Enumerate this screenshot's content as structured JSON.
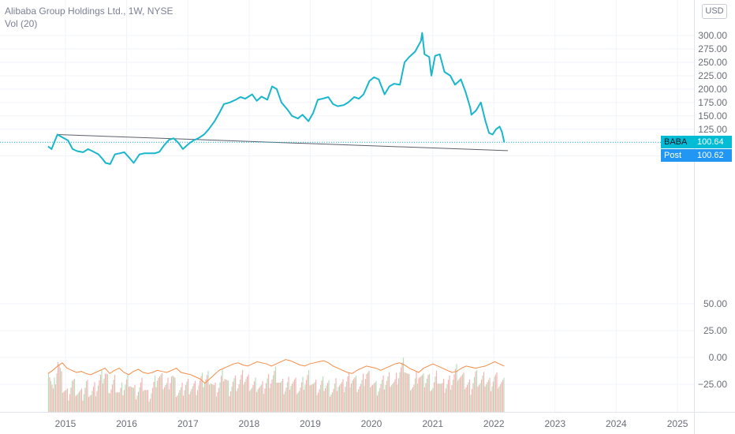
{
  "legend": {
    "title": "Alibaba Group Holdings Ltd., 1W, NYSE",
    "volume": "Vol (20)"
  },
  "currency_button": "USD",
  "price_tags": [
    {
      "label": "BABA",
      "value": "100.64",
      "color": "#00bcd4",
      "label_bg": "#00bcd4",
      "label_fg": "#131722"
    },
    {
      "label": "Post",
      "value": "100.62",
      "color": "#2196f3",
      "label_bg": "#2196f3",
      "label_fg": "#ffffff"
    }
  ],
  "colors": {
    "price_line": "#19b6cc",
    "trendline": "#5d606b",
    "volume_up": "#b7dfb9",
    "volume_down": "#f7b4b4",
    "volume_ma": "#f48c45",
    "grid": "#f0f3fa",
    "axis_text": "#6a6d78"
  },
  "chart_data": {
    "type": "line",
    "title": "Alibaba Group Holdings Ltd., 1W, NYSE",
    "x_ticks": [
      "2015",
      "2016",
      "2017",
      "2018",
      "2019",
      "2020",
      "2021",
      "2022",
      "2023",
      "2024",
      "2025"
    ],
    "price_ticks": [
      "300.00",
      "275.00",
      "250.00",
      "225.00",
      "200.00",
      "175.00",
      "150.00",
      "125.00",
      "75.00"
    ],
    "price_range": [
      0,
      320
    ],
    "series": [
      {
        "values_description_free": true,
        "x": [
          "2014-09-19",
          "2014-10-10",
          "2014-11-14",
          "2014-12-12",
          "2015-01-16",
          "2015-02-13",
          "2015-03-13",
          "2015-04-17",
          "2015-05-15",
          "2015-06-12",
          "2015-07-17",
          "2015-08-14",
          "2015-08-28",
          "2015-09-25",
          "2015-10-23",
          "2015-11-20",
          "2015-12-18",
          "2016-01-22",
          "2016-02-12",
          "2016-03-18",
          "2016-04-15",
          "2016-05-20",
          "2016-06-17",
          "2016-07-15",
          "2016-08-12",
          "2016-09-09",
          "2016-10-07",
          "2016-11-04",
          "2016-12-02",
          "2017-01-06",
          "2017-02-03",
          "2017-03-03",
          "2017-04-07",
          "2017-05-05",
          "2017-06-09",
          "2017-07-07",
          "2017-08-04",
          "2017-09-08",
          "2017-10-13",
          "2017-11-10",
          "2017-12-08",
          "2018-01-19",
          "2018-02-16",
          "2018-03-16",
          "2018-04-20",
          "2018-05-18",
          "2018-06-15",
          "2018-07-13",
          "2018-08-17",
          "2018-09-14",
          "2018-10-19",
          "2018-11-16",
          "2018-12-21",
          "2019-01-18",
          "2019-02-15",
          "2019-03-15",
          "2019-04-19",
          "2019-05-17",
          "2019-06-14",
          "2019-07-19",
          "2019-08-16",
          "2019-09-20",
          "2019-10-18",
          "2019-11-15",
          "2019-12-20",
          "2020-01-17",
          "2020-02-14",
          "2020-03-20",
          "2020-04-17",
          "2020-05-15",
          "2020-06-19",
          "2020-07-17",
          "2020-08-14",
          "2020-09-18",
          "2020-10-23",
          "2020-10-30",
          "2020-11-13",
          "2020-12-11",
          "2020-12-24",
          "2021-01-15",
          "2021-02-12",
          "2021-03-12",
          "2021-04-16",
          "2021-05-14",
          "2021-06-18",
          "2021-07-16",
          "2021-08-13",
          "2021-08-20",
          "2021-09-17",
          "2021-10-15",
          "2021-11-12",
          "2021-12-03",
          "2021-12-24",
          "2022-01-14",
          "2022-02-04",
          "2022-02-18",
          "2022-03-04"
        ],
        "values": [
          93,
          88,
          115,
          110,
          104,
          88,
          84,
          82,
          88,
          84,
          78,
          68,
          62,
          60,
          78,
          80,
          82,
          70,
          62,
          78,
          80,
          80,
          80,
          83,
          95,
          105,
          108,
          100,
          88,
          98,
          104,
          108,
          115,
          125,
          140,
          155,
          172,
          175,
          180,
          185,
          182,
          190,
          178,
          186,
          180,
          205,
          200,
          175,
          162,
          150,
          145,
          152,
          140,
          155,
          180,
          182,
          185,
          172,
          168,
          170,
          175,
          185,
          182,
          190,
          215,
          222,
          218,
          190,
          205,
          210,
          208,
          250,
          260,
          270,
          290,
          305,
          265,
          260,
          225,
          262,
          265,
          232,
          225,
          208,
          218,
          195,
          165,
          152,
          160,
          175,
          140,
          118,
          115,
          125,
          130,
          120,
          100.64
        ]
      }
    ],
    "trendline": {
      "start": {
        "x": "2014-11-14",
        "y": 115
      },
      "end": {
        "x": "2022-03-25",
        "y": 85
      }
    },
    "last_price": 100.64,
    "post_price": 100.62,
    "volume_panel": {
      "ticks": [
        "50.00",
        "25.00",
        "0.00",
        "−25.00"
      ],
      "tick_values": [
        50,
        25,
        0,
        -25
      ],
      "range": [
        -50,
        70
      ],
      "volume_values": [
        38,
        12,
        42,
        18,
        10,
        22,
        14,
        8,
        20,
        12,
        16,
        24,
        30,
        16,
        22,
        10,
        18,
        26,
        12,
        14,
        20,
        8,
        16,
        28,
        22,
        18,
        30,
        14,
        12,
        20,
        18,
        16,
        22,
        24,
        28,
        14,
        18,
        30,
        16,
        22,
        20,
        26,
        24,
        18,
        20,
        14,
        22,
        26,
        30,
        18,
        16,
        24,
        20,
        14,
        22,
        28,
        18,
        16,
        20,
        18,
        14,
        22,
        16,
        24,
        26,
        20,
        18,
        30,
        24,
        16,
        18,
        22,
        26,
        20,
        32,
        38,
        24,
        18,
        30,
        22,
        26,
        18,
        28,
        16,
        20,
        24,
        32,
        26,
        20,
        18,
        28,
        22,
        24,
        20,
        26,
        22,
        18
      ],
      "ma_values": [
        -15,
        -12,
        -8,
        -5,
        -10,
        -12,
        -14,
        -13,
        -15,
        -16,
        -14,
        -12,
        -10,
        -15,
        -12,
        -10,
        -14,
        -16,
        -13,
        -11,
        -14,
        -15,
        -14,
        -12,
        -13,
        -14,
        -12,
        -10,
        -14,
        -15,
        -16,
        -18,
        -20,
        -24,
        -20,
        -16,
        -12,
        -10,
        -8,
        -6,
        -5,
        -7,
        -8,
        -6,
        -4,
        -5,
        -6,
        -8,
        -6,
        -4,
        -2,
        -3,
        -5,
        -7,
        -8,
        -6,
        -5,
        -4,
        -3,
        -5,
        -8,
        -10,
        -12,
        -14,
        -15,
        -12,
        -10,
        -8,
        -9,
        -10,
        -12,
        -10,
        -8,
        -6,
        -5,
        -7,
        -10,
        -12,
        -14,
        -10,
        -8,
        -6,
        -8,
        -10,
        -12,
        -14,
        -13,
        -10,
        -8,
        -9,
        -10,
        -9,
        -8,
        -6,
        -4,
        -6,
        -8
      ]
    }
  }
}
